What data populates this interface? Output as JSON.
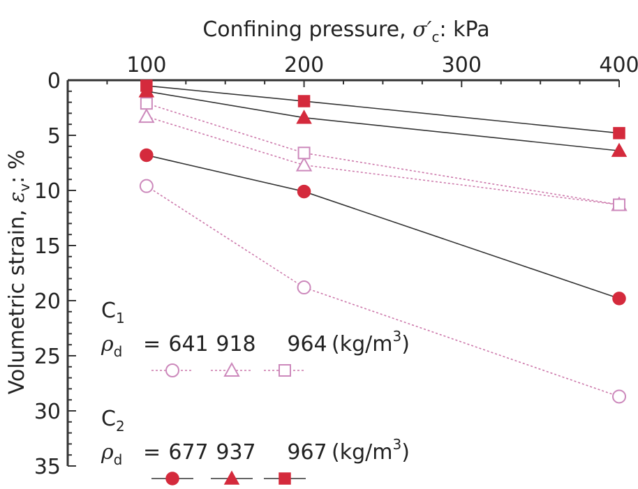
{
  "chart_data": {
    "type": "line",
    "x_axis": {
      "label": "Confining pressure, σ′c: kPa",
      "label_main": "Confining pressure, ",
      "label_symbol": "σ′",
      "label_sub": "c",
      "label_unit": ": kPa",
      "ticks": [
        100,
        200,
        300,
        400
      ],
      "tick_labels": [
        "100",
        "200",
        "300",
        "400"
      ],
      "range": [
        50,
        400
      ],
      "position": "top"
    },
    "y_axis": {
      "label": "Volumetric strain, εv: %",
      "label_main": "Volumetric strain, ",
      "label_symbol": "ε",
      "label_sub": "v",
      "label_unit": ": %",
      "ticks": [
        0,
        5,
        10,
        15,
        20,
        25,
        30,
        35
      ],
      "tick_labels": [
        "0",
        "5",
        "10",
        "15",
        "20",
        "25",
        "30",
        "35"
      ],
      "range": [
        0,
        35
      ],
      "inverted": true
    },
    "x": [
      100,
      200,
      400
    ],
    "series": [
      {
        "name": "C1 ρd = 641 kg/m3",
        "group": "C1",
        "marker": "circle",
        "filled": false,
        "values": [
          9.6,
          18.8,
          28.7
        ]
      },
      {
        "name": "C1 ρd = 918 kg/m3",
        "group": "C1",
        "marker": "triangle",
        "filled": false,
        "values": [
          3.3,
          7.7,
          11.3
        ]
      },
      {
        "name": "C1 ρd = 964 kg/m3",
        "group": "C1",
        "marker": "square",
        "filled": false,
        "values": [
          2.1,
          6.6,
          11.3
        ]
      },
      {
        "name": "C2 ρd = 677 kg/m3",
        "group": "C2",
        "marker": "circle",
        "filled": true,
        "values": [
          6.8,
          10.1,
          19.8
        ]
      },
      {
        "name": "C2 ρd = 937 kg/m3",
        "group": "C2",
        "marker": "triangle",
        "filled": true,
        "values": [
          1.0,
          3.4,
          6.4
        ]
      },
      {
        "name": "C2 ρd = 967 kg/m3",
        "group": "C2",
        "marker": "square",
        "filled": true,
        "values": [
          0.5,
          1.9,
          4.8
        ]
      }
    ],
    "legend": {
      "placement": "bottom-left",
      "groups": [
        {
          "label_main": "C",
          "label_sub": "1",
          "rho_main": "ρ",
          "rho_sub": "d",
          "equals": "=",
          "values": [
            "641",
            "918",
            "964"
          ],
          "unit_main": "(kg/m",
          "unit_sup": "3",
          "unit_end": ")",
          "style": "open-dotted",
          "markers": [
            "circle",
            "triangle",
            "square"
          ]
        },
        {
          "label_main": "C",
          "label_sub": "2",
          "rho_main": "ρ",
          "rho_sub": "d",
          "equals": "=",
          "values": [
            "677",
            "937",
            "967"
          ],
          "unit_main": "(kg/m",
          "unit_sup": "3",
          "unit_end": ")",
          "style": "filled-solid",
          "markers": [
            "circle",
            "triangle",
            "square"
          ]
        }
      ]
    },
    "colors": {
      "marker": "#d42a3c",
      "open_marker_stroke": "#cc88bb",
      "open_line": "#cc77aa",
      "filled_line": "#333333",
      "axis": "#333333",
      "text": "#222222"
    }
  }
}
